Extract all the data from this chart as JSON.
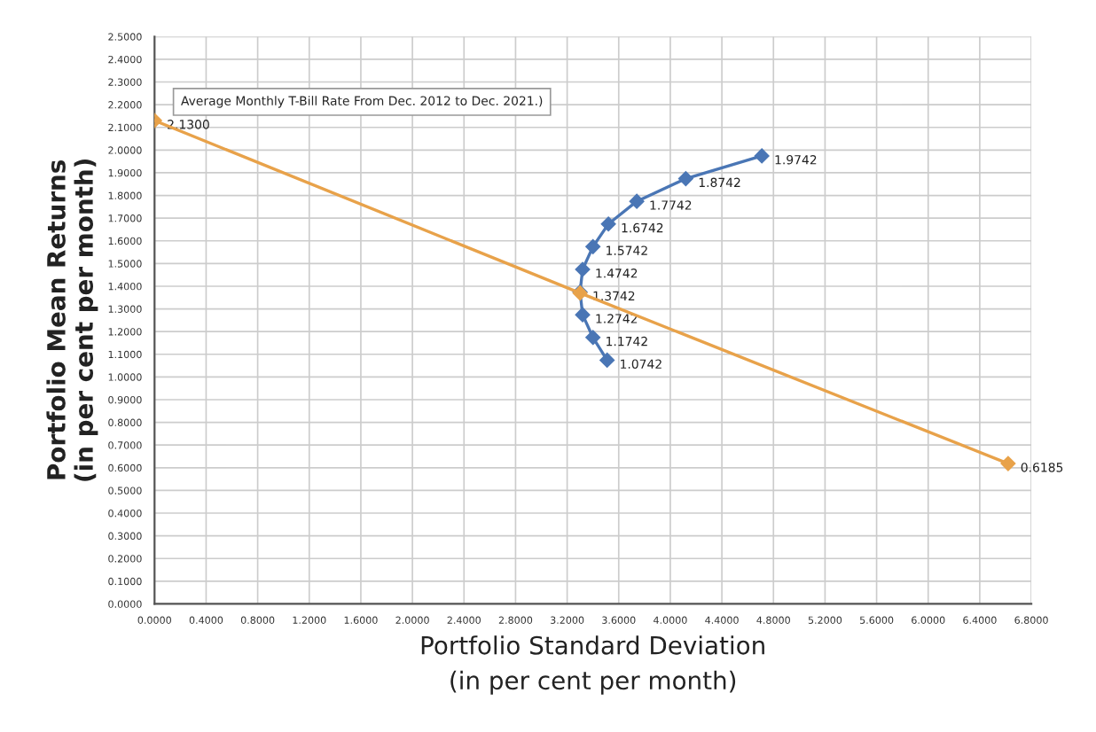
{
  "chart_data": {
    "type": "line",
    "xlabel": "Portfolio Standard Deviation\n(in per cent per month)",
    "ylabel": "Portfolio Mean Returns\n(in per cent per month)",
    "annotations": [
      "Average Monthly T-Bill Rate From Dec. 2012 to Dec. 2021.)"
    ],
    "series": [
      {
        "color": "#4a76b5",
        "x": [
          3.51,
          3.4,
          3.32,
          3.3,
          3.32,
          3.4,
          3.52,
          3.74,
          4.12,
          4.71
        ],
        "values": [
          1.0742,
          1.1742,
          1.2742,
          1.3742,
          1.4742,
          1.5742,
          1.6742,
          1.7742,
          1.8742,
          1.9742
        ],
        "value_labels": [
          "1.0742",
          "1.1742",
          "1.2742",
          "1.3742",
          "1.4742",
          "1.5742",
          "1.6742",
          "1.7742",
          "1.8742",
          "1.9742"
        ]
      },
      {
        "color": "#e8a24a",
        "x": [
          0.0,
          3.3,
          6.62
        ],
        "values": [
          2.13,
          1.37,
          0.6185
        ],
        "value_labels": [
          "2.1300",
          null,
          "0.6185"
        ]
      }
    ],
    "xlim": [
      0,
      6.8
    ],
    "xticks": [
      {
        "value": 0,
        "label": "0.0000"
      },
      {
        "value": 0.4,
        "label": "0.4000"
      },
      {
        "value": 0.8,
        "label": "0.8000"
      },
      {
        "value": 1.2,
        "label": "1.2000"
      },
      {
        "value": 1.6,
        "label": "1.6000"
      },
      {
        "value": 2.0,
        "label": "2.0000"
      },
      {
        "value": 2.4,
        "label": "2.4000"
      },
      {
        "value": 2.8,
        "label": "2.8000"
      },
      {
        "value": 3.2,
        "label": "3.2000"
      },
      {
        "value": 3.6,
        "label": "3.6000"
      },
      {
        "value": 4.0,
        "label": "4.0000"
      },
      {
        "value": 4.4,
        "label": "4.4000"
      },
      {
        "value": 4.8,
        "label": "4.8000"
      },
      {
        "value": 5.2,
        "label": "5.2000"
      },
      {
        "value": 5.6,
        "label": "5.6000"
      },
      {
        "value": 6.0,
        "label": "6.0000"
      },
      {
        "value": 6.4,
        "label": "6.4000"
      },
      {
        "value": 6.8,
        "label": "6.8000"
      }
    ],
    "ylim": [
      0,
      2.5
    ],
    "yticks": [
      {
        "value": 0,
        "label": "0.0000"
      },
      {
        "value": 0.1,
        "label": "0.1000"
      },
      {
        "value": 0.2,
        "label": "0.2000"
      },
      {
        "value": 0.3,
        "label": "0.3000"
      },
      {
        "value": 0.4,
        "label": "0.4000"
      },
      {
        "value": 0.5,
        "label": "0.5000"
      },
      {
        "value": 0.6,
        "label": "0.6000"
      },
      {
        "value": 0.7,
        "label": "0.7000"
      },
      {
        "value": 0.8,
        "label": "0.8000"
      },
      {
        "value": 0.9,
        "label": "0.9000"
      },
      {
        "value": 1.0,
        "label": "1.0000"
      },
      {
        "value": 1.1,
        "label": "1.1000"
      },
      {
        "value": 1.2,
        "label": "1.2000"
      },
      {
        "value": 1.3,
        "label": "1.3000"
      },
      {
        "value": 1.4,
        "label": "1.4000"
      },
      {
        "value": 1.5,
        "label": "1.5000"
      },
      {
        "value": 1.6,
        "label": "1.6000"
      },
      {
        "value": 1.7,
        "label": "1.7000"
      },
      {
        "value": 1.8,
        "label": "1.8000"
      },
      {
        "value": 1.9,
        "label": "1.9000"
      },
      {
        "value": 2.0,
        "label": "2.0000"
      },
      {
        "value": 2.1,
        "label": "2.1000"
      },
      {
        "value": 2.2,
        "label": "2.2000"
      },
      {
        "value": 2.3,
        "label": "2.3000"
      },
      {
        "value": 2.4,
        "label": "2.4000"
      },
      {
        "value": 2.5,
        "label": "2.5000"
      }
    ],
    "grid": true,
    "legend": false,
    "marker": "diamond",
    "line_style": "solid"
  }
}
